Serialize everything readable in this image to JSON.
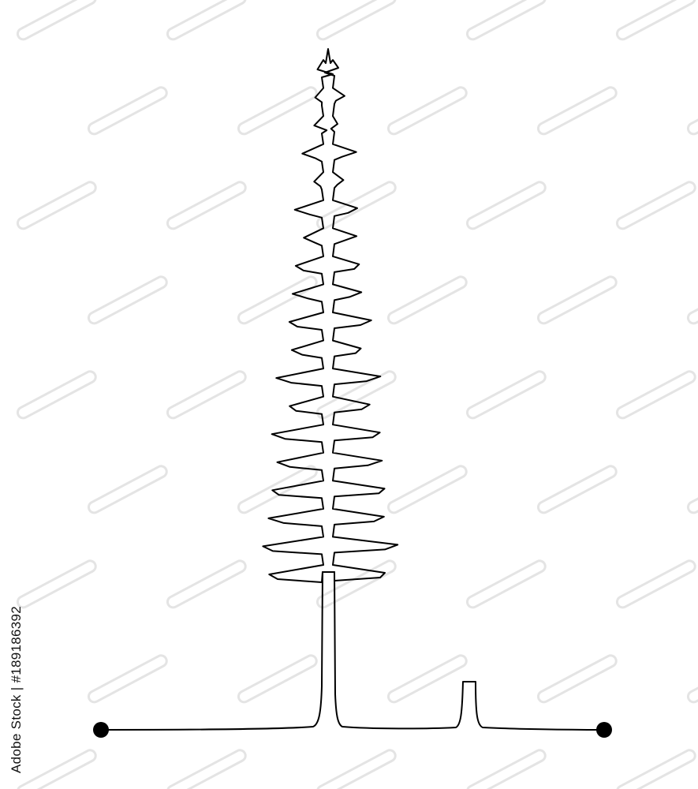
{
  "stock_id": "Adobe Stock | #189186392",
  "watermark": {
    "brand": "adobe-stock-watermark",
    "color": "#e4e4e4"
  },
  "drawing": {
    "subject": "single-line-fir-tree-icon",
    "line_color": "#000000",
    "background": "#ffffff"
  }
}
